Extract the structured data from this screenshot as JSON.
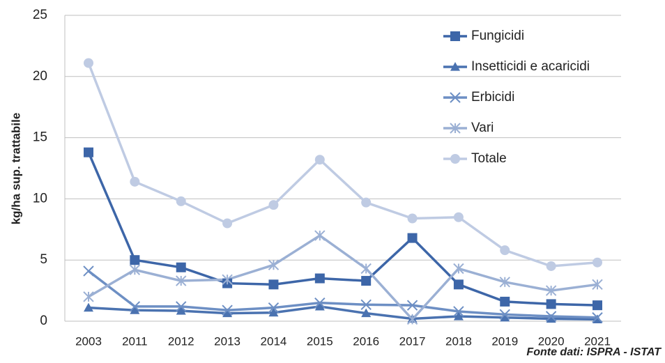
{
  "chart_data": {
    "type": "line",
    "y_label": "kg/ha sup. trattabile",
    "annotation": "Fonte dati: ISPRA - ISTAT",
    "categories": [
      "2003",
      "2011",
      "2012",
      "2013",
      "2014",
      "2015",
      "2016",
      "2017",
      "2018",
      "2019",
      "2020",
      "2021"
    ],
    "series": [
      {
        "name": "Fungicidi",
        "color": "#3d66a8",
        "marker": "square",
        "values": [
          13.8,
          5.0,
          4.4,
          3.1,
          3.0,
          3.5,
          3.3,
          6.8,
          3.0,
          1.6,
          1.4,
          1.3
        ]
      },
      {
        "name": "Insetticidi e acaricidi",
        "color": "#4a72b0",
        "marker": "triangle",
        "values": [
          1.1,
          0.9,
          0.85,
          0.65,
          0.7,
          1.2,
          0.65,
          0.2,
          0.4,
          0.3,
          0.2,
          0.15
        ]
      },
      {
        "name": "Erbicidi",
        "color": "#6d8fc4",
        "marker": "x",
        "values": [
          4.1,
          1.2,
          1.2,
          0.9,
          1.1,
          1.5,
          1.35,
          1.3,
          0.8,
          0.55,
          0.4,
          0.3
        ]
      },
      {
        "name": "Vari",
        "color": "#9bb0d4",
        "marker": "star",
        "values": [
          2.0,
          4.2,
          3.3,
          3.4,
          4.6,
          7.0,
          4.3,
          0.15,
          4.3,
          3.2,
          2.5,
          3.0
        ]
      },
      {
        "name": "Totale",
        "color": "#bfcbe3",
        "marker": "circle",
        "values": [
          21.1,
          11.4,
          9.8,
          8.0,
          9.5,
          13.2,
          9.7,
          8.4,
          8.5,
          5.8,
          4.5,
          4.8
        ]
      }
    ],
    "ylim": [
      0,
      25
    ],
    "yticks": [
      0,
      5,
      10,
      15,
      20,
      25
    ],
    "grid": true,
    "legend": "top-right"
  }
}
